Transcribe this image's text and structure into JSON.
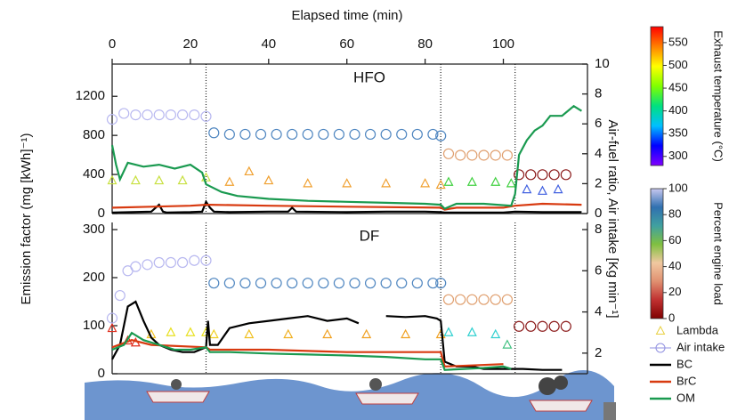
{
  "x_axis": {
    "label": "Elapsed time (min)",
    "xlim": [
      0,
      121.5
    ],
    "xticks": [
      0,
      20,
      40,
      60,
      80,
      100
    ]
  },
  "y_label": "Emission factor (mg [kWh]⁻¹)",
  "y2_label": "Air-fuel ratio, Air intake [Kg min⁻¹]",
  "phase_times": [
    24,
    84,
    103
  ],
  "colorbars": [
    {
      "label": "Exhaust temperature (°C)",
      "lim": [
        280,
        585
      ],
      "ticks": [
        300,
        350,
        400,
        450,
        500,
        550
      ],
      "colors": [
        "#8000ff",
        "#0000ff",
        "#00c0ff",
        "#00e080",
        "#80ff00",
        "#ffff00",
        "#ff8000",
        "#ff0000"
      ]
    },
    {
      "label": "Percent engine load",
      "lim": [
        0,
        100
      ],
      "ticks": [
        0,
        20,
        40,
        60,
        80,
        100
      ],
      "colors": [
        "#800000",
        "#c03030",
        "#e09070",
        "#f0c8a0",
        "#80c040",
        "#40a0a0",
        "#3070b0",
        "#c8c8f0"
      ]
    }
  ],
  "chart_data": [
    {
      "type": "line",
      "title": "HFO",
      "ylim": [
        0,
        1530
      ],
      "yticks": [
        0,
        400,
        800,
        1200
      ],
      "y2lim": [
        0,
        10
      ],
      "y2ticks": [
        0,
        2,
        4,
        6,
        8,
        10
      ],
      "series": [
        {
          "name": "Lambda",
          "axis": "y2",
          "marker": "triangle",
          "color": "#e8d040",
          "x": [
            0,
            6,
            12,
            18,
            24,
            30,
            35,
            40,
            50,
            60,
            70,
            80,
            84,
            86,
            92,
            98,
            102,
            106,
            110,
            114
          ],
          "values": [
            2.2,
            2.2,
            2.2,
            2.2,
            2.4,
            2.1,
            2.8,
            2.2,
            2.0,
            2.0,
            2.0,
            2.0,
            1.9,
            2.1,
            2.1,
            2.1,
            2.0,
            1.6,
            1.5,
            1.6
          ],
          "colors": [
            "#c8e040",
            "#c8e040",
            "#c8e040",
            "#c8e040",
            "#c8e040",
            "#f0a030",
            "#f0a030",
            "#f0a030",
            "#f0a030",
            "#f0a030",
            "#f0a030",
            "#f0a030",
            "#f0a030",
            "#40d040",
            "#40d040",
            "#40d040",
            "#40d040",
            "#4060e0",
            "#4060e0",
            "#4060e0"
          ]
        },
        {
          "name": "Air intake",
          "axis": "y2",
          "marker": "circle",
          "color": "#9090e0",
          "x": [
            0,
            3,
            6,
            9,
            12,
            15,
            18,
            21,
            24,
            26,
            30,
            34,
            38,
            42,
            46,
            50,
            54,
            58,
            62,
            66,
            70,
            74,
            78,
            82,
            84,
            86,
            89,
            92,
            95,
            98,
            101,
            104,
            107,
            110,
            113,
            116
          ],
          "values": [
            6.3,
            6.7,
            6.6,
            6.6,
            6.6,
            6.6,
            6.6,
            6.6,
            6.5,
            5.4,
            5.3,
            5.3,
            5.3,
            5.3,
            5.3,
            5.3,
            5.3,
            5.3,
            5.3,
            5.3,
            5.3,
            5.3,
            5.3,
            5.3,
            5.2,
            4.0,
            3.9,
            3.9,
            3.9,
            3.9,
            3.9,
            2.6,
            2.6,
            2.6,
            2.6,
            2.6
          ],
          "colors": [
            "#b8b8f0",
            "#b8b8f0",
            "#b8b8f0",
            "#b8b8f0",
            "#b8b8f0",
            "#b8b8f0",
            "#b8b8f0",
            "#b8b8f0",
            "#b8b8f0",
            "#4f86c0",
            "#4f86c0",
            "#4f86c0",
            "#4f86c0",
            "#4f86c0",
            "#4f86c0",
            "#4f86c0",
            "#4f86c0",
            "#4f86c0",
            "#4f86c0",
            "#4f86c0",
            "#4f86c0",
            "#4f86c0",
            "#4f86c0",
            "#4f86c0",
            "#4f86c0",
            "#e0a070",
            "#e0a070",
            "#e0a070",
            "#e0a070",
            "#e0a070",
            "#e0a070",
            "#8b1a1a",
            "#8b1a1a",
            "#8b1a1a",
            "#8b1a1a",
            "#8b1a1a"
          ]
        },
        {
          "name": "BC",
          "color": "#000000",
          "x": [
            0,
            5,
            10,
            12,
            13,
            14,
            20,
            23,
            24,
            25,
            26,
            30,
            40,
            45,
            46,
            47,
            60,
            70,
            80,
            84,
            85,
            90,
            100,
            103,
            110,
            120
          ],
          "values": [
            10,
            15,
            20,
            90,
            20,
            10,
            15,
            20,
            120,
            60,
            20,
            15,
            20,
            20,
            60,
            20,
            15,
            20,
            20,
            15,
            10,
            10,
            10,
            20,
            15,
            15
          ]
        },
        {
          "name": "BrC",
          "color": "#d83a10",
          "x": [
            0,
            10,
            20,
            24,
            25,
            40,
            60,
            84,
            85,
            88,
            100,
            103,
            110,
            120
          ],
          "values": [
            60,
            70,
            80,
            90,
            90,
            80,
            70,
            60,
            40,
            60,
            60,
            80,
            100,
            90
          ]
        },
        {
          "name": "OM",
          "color": "#1a9a50",
          "x": [
            0,
            1,
            2,
            4,
            8,
            12,
            16,
            20,
            23,
            24,
            25,
            28,
            32,
            40,
            50,
            60,
            70,
            80,
            84,
            85,
            88,
            95,
            102,
            103,
            104,
            106,
            108,
            110,
            112,
            115,
            118,
            120
          ],
          "values": [
            700,
            500,
            350,
            520,
            480,
            500,
            460,
            500,
            420,
            300,
            280,
            220,
            180,
            150,
            130,
            120,
            110,
            100,
            90,
            50,
            100,
            100,
            80,
            200,
            600,
            750,
            850,
            900,
            1000,
            1000,
            1100,
            1050
          ]
        }
      ]
    },
    {
      "type": "line",
      "title": "DF",
      "ylim": [
        0,
        300
      ],
      "yticks": [
        0,
        100,
        200,
        300
      ],
      "y2lim": [
        1,
        8
      ],
      "y2ticks": [
        2,
        4,
        6,
        8
      ],
      "series": [
        {
          "name": "Lambda",
          "axis": "y2",
          "marker": "triangle",
          "color": "#e8d040",
          "x": [
            0,
            4,
            6,
            10,
            15,
            20,
            24,
            26,
            35,
            45,
            55,
            65,
            75,
            84,
            86,
            92,
            98,
            101
          ],
          "values": [
            3.2,
            2.6,
            2.5,
            2.9,
            3.0,
            3.0,
            3.0,
            2.9,
            2.9,
            2.9,
            2.9,
            2.9,
            2.9,
            2.9,
            3.0,
            3.0,
            2.9,
            2.4
          ],
          "colors": [
            "#e03020",
            "#e03020",
            "#e03020",
            "#f0c020",
            "#e8e020",
            "#e8e020",
            "#e8e020",
            "#f0d020",
            "#f0c020",
            "#f0b020",
            "#f0a020",
            "#f0a020",
            "#f0a020",
            "#f0a020",
            "#30d0d0",
            "#30d0d0",
            "#30d0d0",
            "#40c080"
          ]
        },
        {
          "name": "Air intake",
          "axis": "y2",
          "marker": "circle",
          "color": "#9090e0",
          "x": [
            0,
            2,
            4,
            6,
            9,
            12,
            15,
            18,
            21,
            24,
            26,
            30,
            34,
            38,
            42,
            46,
            50,
            54,
            58,
            62,
            66,
            70,
            74,
            78,
            82,
            84,
            86,
            89,
            92,
            95,
            98,
            101,
            104,
            107,
            110,
            113,
            116
          ],
          "values": [
            3.7,
            4.8,
            6.0,
            6.2,
            6.3,
            6.4,
            6.4,
            6.4,
            6.5,
            6.5,
            5.4,
            5.4,
            5.4,
            5.4,
            5.4,
            5.4,
            5.4,
            5.4,
            5.4,
            5.4,
            5.4,
            5.4,
            5.4,
            5.4,
            5.4,
            5.4,
            4.6,
            4.6,
            4.6,
            4.6,
            4.6,
            4.6,
            3.3,
            3.3,
            3.3,
            3.3,
            3.3
          ],
          "colors": [
            "#b8b8f0",
            "#b8b8f0",
            "#b8b8f0",
            "#b8b8f0",
            "#b8b8f0",
            "#b8b8f0",
            "#b8b8f0",
            "#b8b8f0",
            "#b8b8f0",
            "#b8b8f0",
            "#4f86c0",
            "#4f86c0",
            "#4f86c0",
            "#4f86c0",
            "#4f86c0",
            "#4f86c0",
            "#4f86c0",
            "#4f86c0",
            "#4f86c0",
            "#4f86c0",
            "#4f86c0",
            "#4f86c0",
            "#4f86c0",
            "#4f86c0",
            "#4f86c0",
            "#4f86c0",
            "#e0a070",
            "#e0a070",
            "#e0a070",
            "#e0a070",
            "#e0a070",
            "#e0a070",
            "#8b1a1a",
            "#8b1a1a",
            "#8b1a1a",
            "#8b1a1a",
            "#8b1a1a"
          ]
        },
        {
          "name": "BC",
          "color": "#000000",
          "x": [
            0,
            2,
            4,
            6,
            8,
            10,
            12,
            15,
            18,
            21,
            24,
            24.5,
            25,
            27,
            30,
            35,
            40,
            45,
            50,
            55,
            60,
            63,
            66,
            70,
            75,
            80,
            83,
            84,
            85,
            88,
            92,
            95,
            100,
            105,
            110,
            115
          ],
          "values": [
            30,
            60,
            140,
            150,
            110,
            75,
            60,
            50,
            45,
            45,
            55,
            110,
            60,
            60,
            95,
            105,
            110,
            115,
            120,
            110,
            115,
            105,
            null,
            120,
            118,
            120,
            115,
            110,
            25,
            15,
            15,
            10,
            10,
            10,
            8,
            8
          ]
        },
        {
          "name": "BrC",
          "color": "#d83a10",
          "x": [
            0,
            5,
            10,
            24,
            25,
            40,
            60,
            84,
            85,
            100
          ],
          "values": [
            55,
            70,
            60,
            55,
            50,
            50,
            45,
            45,
            15,
            20
          ]
        },
        {
          "name": "OM",
          "color": "#1a9a50",
          "x": [
            0,
            3,
            5,
            8,
            12,
            16,
            20,
            24,
            25,
            30,
            40,
            50,
            60,
            70,
            80,
            84,
            85,
            90,
            95,
            100,
            102
          ],
          "values": [
            50,
            60,
            85,
            70,
            60,
            50,
            50,
            55,
            45,
            45,
            42,
            40,
            38,
            35,
            30,
            30,
            8,
            10,
            12,
            15,
            10
          ]
        }
      ]
    }
  ]
}
